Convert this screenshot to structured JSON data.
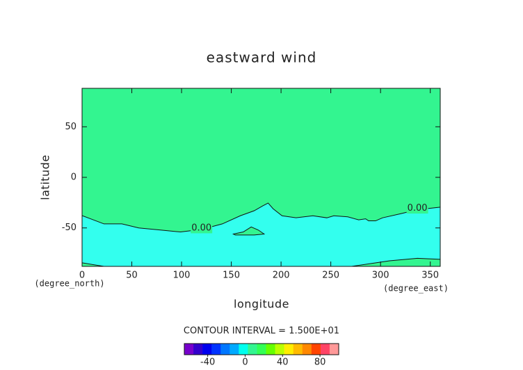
{
  "chart_data": {
    "type": "contour",
    "title": "eastward wind",
    "xlabel": "longitude",
    "ylabel": "latitude",
    "xunit": "(degree_east)",
    "yunit": "(degree_north)",
    "xlim": [
      0,
      360
    ],
    "ylim": [
      -88,
      88
    ],
    "xticks": [
      0,
      50,
      100,
      150,
      200,
      250,
      300,
      350
    ],
    "yticks": [
      -50,
      0,
      50
    ],
    "below_color": "#33ffee",
    "above_color": "#33f590",
    "contours": [
      {
        "level": 0,
        "level_label": "0.00",
        "x": [
          0,
          22,
          40,
          57,
          78,
          99,
          120,
          141,
          159,
          173,
          182,
          187,
          192,
          201,
          215,
          232,
          246,
          253,
          267,
          278,
          285,
          288,
          295,
          302,
          320,
          337,
          360
        ],
        "y": [
          -37.8,
          -46,
          -46,
          -50,
          -52,
          -54,
          -51.5,
          -46,
          -38,
          -33,
          -28,
          -25.4,
          -31,
          -38,
          -40,
          -38,
          -40,
          -38,
          -39,
          -42,
          -41,
          -43,
          -43,
          -40,
          -36,
          -32,
          -29.5
        ],
        "label_at": [
          120,
          337
        ]
      },
      {
        "level": 0,
        "x": [
          152,
          162,
          170,
          177,
          183,
          173,
          154
        ],
        "y": [
          -56,
          -54,
          -49,
          -52,
          -56,
          -57,
          -57
        ],
        "closed": true
      },
      {
        "level": 0,
        "x": [
          0,
          22
        ],
        "y": [
          -84.5,
          -88
        ]
      },
      {
        "level": 0,
        "x": [
          271,
          309,
          337,
          360
        ],
        "y": [
          -88,
          -82.5,
          -80,
          -81
        ]
      }
    ],
    "contour_interval_label": "CONTOUR INTERVAL = 1.500E+01",
    "colorbar": {
      "lim": [
        -65,
        100
      ],
      "ticks": [
        -40,
        0,
        40,
        80
      ],
      "colors": [
        "#7700cc",
        "#3300cc",
        "#0000ee",
        "#0033ff",
        "#0077ff",
        "#00aaff",
        "#00ffee",
        "#33f590",
        "#33ff55",
        "#66ff00",
        "#bbff00",
        "#ffee00",
        "#ffbb00",
        "#ff8800",
        "#ff4400",
        "#ff4466",
        "#ff9999"
      ]
    }
  }
}
